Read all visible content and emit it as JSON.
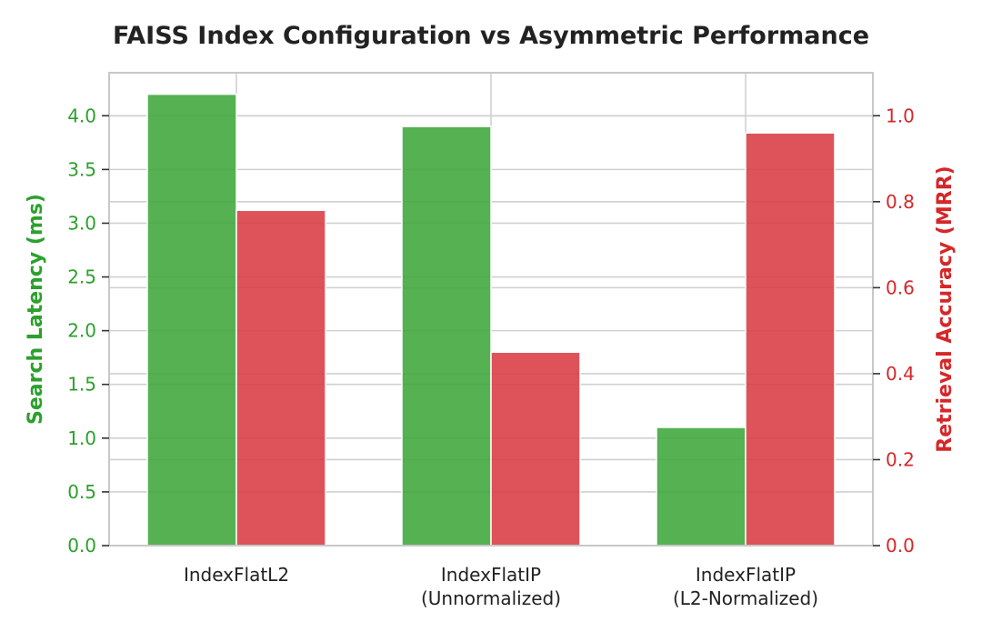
{
  "chart_data": {
    "type": "bar",
    "title": "FAISS Index Configuration vs Asymmetric Performance",
    "categories": [
      [
        "IndexFlatL2"
      ],
      [
        "IndexFlatIP",
        "(Unnormalized)"
      ],
      [
        "IndexFlatIP",
        "(L2-Normalized)"
      ]
    ],
    "ylabel_left": "Search Latency (ms)",
    "ylabel_right": "Retrieval Accuracy (MRR)",
    "ylim_left": [
      0,
      4.4
    ],
    "ylim_right": [
      0,
      1.1
    ],
    "yticks_left": [
      "0.0",
      "0.5",
      "1.0",
      "1.5",
      "2.0",
      "2.5",
      "3.0",
      "3.5",
      "4.0"
    ],
    "yticks_right": [
      "0.0",
      "0.2",
      "0.4",
      "0.6",
      "0.8",
      "1.0"
    ],
    "grid": true,
    "series": [
      {
        "axis": "left",
        "color": "#3ea63a",
        "tick_color": "#2ca02c",
        "values": [
          4.2,
          3.9,
          1.1
        ]
      },
      {
        "axis": "right",
        "color": "#d93a42",
        "tick_color": "#d62728",
        "values": [
          0.78,
          0.45,
          0.96
        ]
      }
    ]
  }
}
